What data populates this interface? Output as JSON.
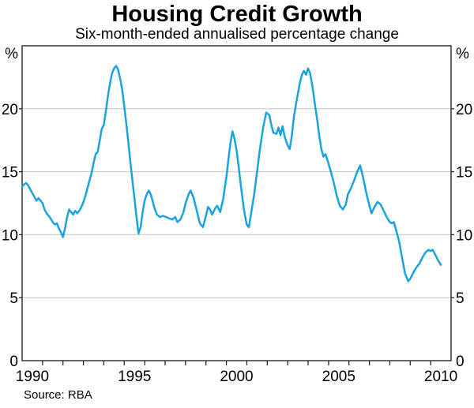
{
  "header": {
    "title": "Housing Credit Growth",
    "subtitle": "Six-month-ended annualised percentage change"
  },
  "footer": {
    "source": "Source: RBA"
  },
  "colors": {
    "line": "#1ba2e0",
    "grid": "#c4c4c4",
    "axis": "#262626",
    "text": "#000000"
  },
  "chart_data": {
    "type": "line",
    "title": "Housing Credit Growth",
    "subtitle": "Six-month-ended annualised percentage change",
    "source": "Source: RBA",
    "unit_left": "%",
    "unit_right": "%",
    "grid": "horizontal",
    "legend": "none",
    "x_range": [
      1990,
      2011
    ],
    "ylim": [
      0,
      25
    ],
    "yticks": [
      0,
      5,
      10,
      15,
      20
    ],
    "x_minor_tick_step": 1,
    "xtick_labels": [
      {
        "label": "1990",
        "x": 1990.5
      },
      {
        "label": "1995",
        "x": 1995.5
      },
      {
        "label": "2000",
        "x": 2000.5
      },
      {
        "label": "2005",
        "x": 2005.5
      },
      {
        "label": "2010",
        "x": 2010.5
      }
    ],
    "series": [
      {
        "name": "Housing credit growth (six-month-ended annualised % change)",
        "color": "#1ba2e0",
        "x": [
          1990.0,
          1990.1,
          1990.2,
          1990.3,
          1990.4,
          1990.5,
          1990.6,
          1990.7,
          1990.8,
          1990.9,
          1991.0,
          1991.1,
          1991.2,
          1991.35,
          1991.5,
          1991.6,
          1991.7,
          1991.8,
          1991.9,
          1992.0,
          1992.1,
          1992.2,
          1992.3,
          1992.4,
          1992.5,
          1992.6,
          1992.7,
          1992.8,
          1992.9,
          1993.0,
          1993.1,
          1993.2,
          1993.3,
          1993.4,
          1993.5,
          1993.6,
          1993.7,
          1993.8,
          1993.9,
          1994.0,
          1994.1,
          1994.2,
          1994.3,
          1994.4,
          1994.5,
          1994.6,
          1994.7,
          1994.8,
          1994.9,
          1995.0,
          1995.1,
          1995.2,
          1995.3,
          1995.4,
          1995.5,
          1995.6,
          1995.7,
          1995.8,
          1995.9,
          1996.0,
          1996.1,
          1996.2,
          1996.3,
          1996.4,
          1996.5,
          1996.6,
          1996.75,
          1996.9,
          1997.05,
          1997.2,
          1997.35,
          1997.5,
          1997.6,
          1997.75,
          1997.9,
          1998.0,
          1998.15,
          1998.25,
          1998.4,
          1998.55,
          1998.7,
          1998.85,
          1999.0,
          1999.1,
          1999.2,
          1999.3,
          1999.45,
          1999.55,
          1999.7,
          1999.85,
          2000.0,
          2000.1,
          2000.2,
          2000.3,
          2000.4,
          2000.5,
          2000.6,
          2000.7,
          2000.8,
          2000.9,
          2001.0,
          2001.1,
          2001.2,
          2001.35,
          2001.5,
          2001.65,
          2001.8,
          2001.95,
          2002.1,
          2002.2,
          2002.3,
          2002.45,
          2002.55,
          2002.65,
          2002.75,
          2002.85,
          2003.0,
          2003.1,
          2003.2,
          2003.3,
          2003.4,
          2003.5,
          2003.6,
          2003.7,
          2003.8,
          2003.9,
          2004.0,
          2004.1,
          2004.2,
          2004.3,
          2004.45,
          2004.55,
          2004.65,
          2004.75,
          2004.85,
          2004.95,
          2005.1,
          2005.25,
          2005.4,
          2005.55,
          2005.7,
          2005.85,
          2005.95,
          2006.1,
          2006.25,
          2006.4,
          2006.55,
          2006.7,
          2006.85,
          2007.0,
          2007.1,
          2007.25,
          2007.4,
          2007.55,
          2007.7,
          2007.85,
          2008.0,
          2008.1,
          2008.2,
          2008.3,
          2008.45,
          2008.6,
          2008.75,
          2008.9,
          2009.0,
          2009.15,
          2009.3,
          2009.45,
          2009.6,
          2009.75,
          2009.9,
          2010.0,
          2010.1,
          2010.2,
          2010.35,
          2010.5
        ],
        "values": [
          13.8,
          14.0,
          14.1,
          13.9,
          13.6,
          13.3,
          13.0,
          12.7,
          12.9,
          12.7,
          12.5,
          12.0,
          11.7,
          11.4,
          11.0,
          10.8,
          10.9,
          10.5,
          10.2,
          9.8,
          10.5,
          11.4,
          12.0,
          11.8,
          11.6,
          11.9,
          11.7,
          11.9,
          12.2,
          12.6,
          13.1,
          13.7,
          14.3,
          14.9,
          15.7,
          16.4,
          16.6,
          17.5,
          18.4,
          18.7,
          19.8,
          21.0,
          22.0,
          22.8,
          23.2,
          23.4,
          23.1,
          22.4,
          21.5,
          20.2,
          18.8,
          17.3,
          15.8,
          14.3,
          12.9,
          11.4,
          10.1,
          10.6,
          11.8,
          12.7,
          13.2,
          13.5,
          13.2,
          12.6,
          12.0,
          11.6,
          11.4,
          11.5,
          11.4,
          11.3,
          11.2,
          11.4,
          11.0,
          11.2,
          11.8,
          12.5,
          13.2,
          13.5,
          12.9,
          11.9,
          10.9,
          10.6,
          11.5,
          12.2,
          12.0,
          11.6,
          12.1,
          12.3,
          11.8,
          12.9,
          14.6,
          16.0,
          17.3,
          18.2,
          17.6,
          16.7,
          15.4,
          14.0,
          12.7,
          11.6,
          10.8,
          10.6,
          11.6,
          13.1,
          15.0,
          16.9,
          18.5,
          19.7,
          19.5,
          18.7,
          18.1,
          18.0,
          18.5,
          17.9,
          18.6,
          17.8,
          17.1,
          16.8,
          17.8,
          19.3,
          20.3,
          21.2,
          22.1,
          22.7,
          23.0,
          22.7,
          23.2,
          22.8,
          21.9,
          20.7,
          19.1,
          17.8,
          16.8,
          16.2,
          16.4,
          15.9,
          15.1,
          14.2,
          13.1,
          12.3,
          12.0,
          12.4,
          13.2,
          13.7,
          14.3,
          15.0,
          15.5,
          14.5,
          13.3,
          12.3,
          11.7,
          12.2,
          12.6,
          12.4,
          11.9,
          11.4,
          11.0,
          10.9,
          11.0,
          10.4,
          9.5,
          8.2,
          6.9,
          6.3,
          6.5,
          7.0,
          7.4,
          7.7,
          8.2,
          8.6,
          8.8,
          8.7,
          8.8,
          8.5,
          8.0,
          7.6
        ]
      }
    ]
  }
}
